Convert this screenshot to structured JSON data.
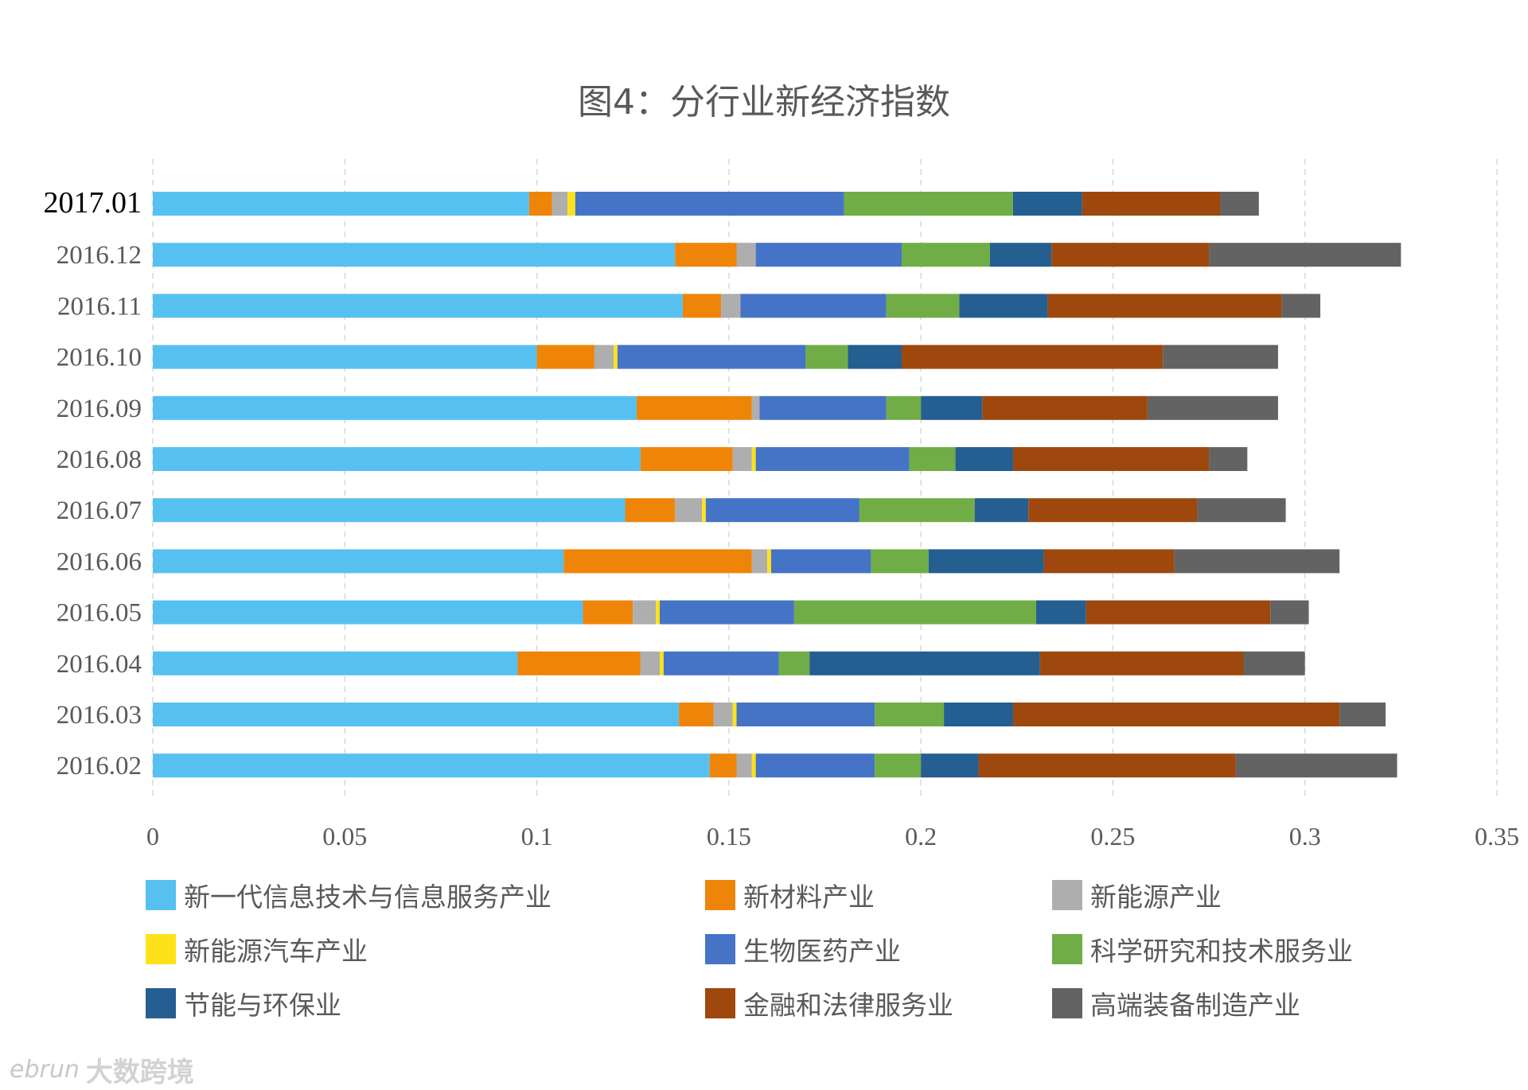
{
  "chart_data": {
    "type": "bar",
    "orientation": "horizontal",
    "stacked": true,
    "title": "图4：分行业新经济指数",
    "categories": [
      "2017.01",
      "2016.12",
      "2016.11",
      "2016.10",
      "2016.09",
      "2016.08",
      "2016.07",
      "2016.06",
      "2016.05",
      "2016.04",
      "2016.03",
      "2016.02"
    ],
    "xlim": [
      0,
      0.35
    ],
    "xticks": [
      "0",
      "0.05",
      "0.1",
      "0.15",
      "0.2",
      "0.25",
      "0.3",
      "0.35"
    ],
    "xtick_values": [
      0,
      0.05,
      0.1,
      0.15,
      0.2,
      0.25,
      0.3,
      0.35
    ],
    "grid": true,
    "legend_position": "bottom",
    "series": [
      {
        "name": "新一代信息技术与信息服务产业",
        "color": "#56C1F1",
        "values": [
          0.098,
          0.136,
          0.138,
          0.1,
          0.126,
          0.127,
          0.123,
          0.107,
          0.112,
          0.095,
          0.137,
          0.145
        ]
      },
      {
        "name": "新材料产业",
        "color": "#EE8508",
        "values": [
          0.006,
          0.016,
          0.01,
          0.015,
          0.03,
          0.024,
          0.013,
          0.049,
          0.013,
          0.032,
          0.009,
          0.007
        ]
      },
      {
        "name": "新能源产业",
        "color": "#AEAEAE",
        "values": [
          0.004,
          0.005,
          0.005,
          0.005,
          0.002,
          0.005,
          0.007,
          0.004,
          0.006,
          0.005,
          0.005,
          0.004
        ]
      },
      {
        "name": "新能源汽车产业",
        "color": "#FFE119",
        "values": [
          0.002,
          0.0,
          0.0,
          0.001,
          0.0,
          0.001,
          0.001,
          0.001,
          0.001,
          0.001,
          0.001,
          0.001
        ]
      },
      {
        "name": "生物医药产业",
        "color": "#4574C6",
        "values": [
          0.07,
          0.038,
          0.038,
          0.049,
          0.033,
          0.04,
          0.04,
          0.026,
          0.035,
          0.03,
          0.036,
          0.031
        ]
      },
      {
        "name": "科学研究和技术服务业",
        "color": "#70AD47",
        "values": [
          0.044,
          0.023,
          0.019,
          0.011,
          0.009,
          0.012,
          0.03,
          0.015,
          0.063,
          0.008,
          0.018,
          0.012
        ]
      },
      {
        "name": "节能与环保业",
        "color": "#255E91",
        "values": [
          0.018,
          0.016,
          0.023,
          0.014,
          0.016,
          0.015,
          0.014,
          0.03,
          0.013,
          0.06,
          0.018,
          0.015
        ]
      },
      {
        "name": "金融和法律服务业",
        "color": "#9E480E",
        "values": [
          0.036,
          0.041,
          0.061,
          0.068,
          0.043,
          0.051,
          0.044,
          0.034,
          0.048,
          0.053,
          0.085,
          0.067
        ]
      },
      {
        "name": "高端装备制造产业",
        "color": "#636363",
        "values": [
          0.01,
          0.05,
          0.01,
          0.03,
          0.034,
          0.01,
          0.023,
          0.043,
          0.01,
          0.016,
          0.012,
          0.042
        ]
      }
    ]
  },
  "watermark": {
    "logo": "ebrun",
    "text": "大数跨境"
  }
}
